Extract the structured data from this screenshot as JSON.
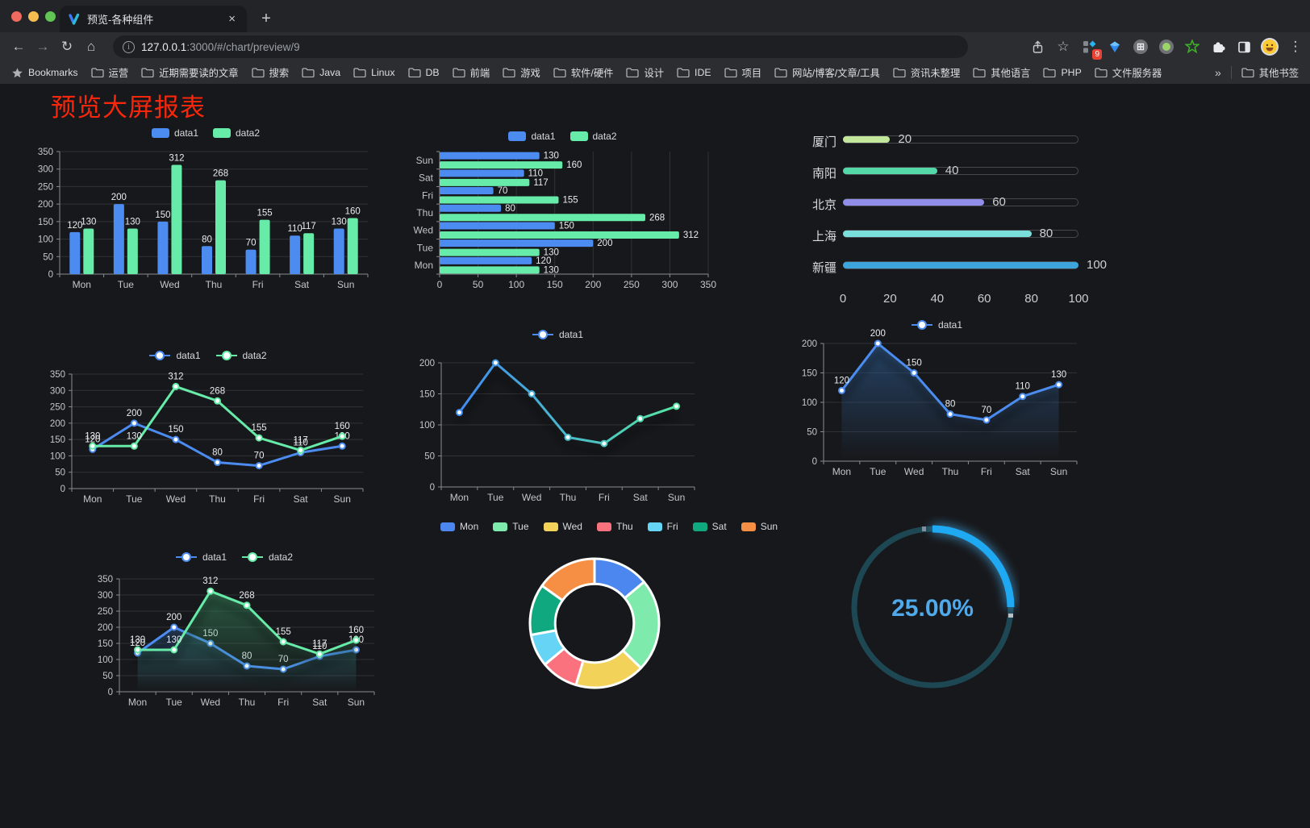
{
  "browser": {
    "traffic_lights": [
      "#EC6A5E",
      "#F5BE4F",
      "#61C454"
    ],
    "tab": {
      "title": "预览-各种组件",
      "close": "×"
    },
    "new_tab": "+",
    "nav": {
      "back": "←",
      "forward": "→",
      "reload": "↻",
      "home": "⌂"
    },
    "url": {
      "info": "i",
      "host": "127.0.0.1",
      "rest": ":3000/#/chart/preview/9"
    },
    "extension_badge": "9",
    "menu_dots": "⋮",
    "bookmarks_bar": {
      "star_label": "Bookmarks",
      "folders": [
        "运营",
        "近期需要读的文章",
        "搜索",
        "Java",
        "Linux",
        "DB",
        "前端",
        "游戏",
        "软件/硬件",
        "设计",
        "IDE",
        "项目",
        "网站/博客/文章/工具",
        "资讯未整理",
        "其他语言",
        "PHP",
        "文件服务器"
      ],
      "overflow": "»",
      "other": "其他书签"
    }
  },
  "page": {
    "title": "预览大屏报表",
    "title_color": "#F8270B",
    "background": "#17181B"
  },
  "chart_data": [
    {
      "type": "bar",
      "legend_position": "top",
      "value_labels": true,
      "grid": true,
      "categories": [
        "Mon",
        "Tue",
        "Wed",
        "Thu",
        "Fri",
        "Sat",
        "Sun"
      ],
      "series": [
        {
          "name": "data1",
          "color": "#4C8CF0",
          "values": [
            120,
            200,
            150,
            80,
            70,
            110,
            130
          ]
        },
        {
          "name": "data2",
          "color": "#66EBA8",
          "values": [
            130,
            130,
            312,
            268,
            155,
            117,
            160
          ]
        }
      ],
      "ylim": [
        0,
        350
      ],
      "ystep": 50
    },
    {
      "type": "bar",
      "orientation": "horizontal",
      "legend_position": "top",
      "value_labels": true,
      "grid": true,
      "categories": [
        "Mon",
        "Tue",
        "Wed",
        "Thu",
        "Fri",
        "Sat",
        "Sun"
      ],
      "series": [
        {
          "name": "data1",
          "color": "#4C8CF0",
          "values": [
            120,
            200,
            150,
            80,
            70,
            110,
            130
          ]
        },
        {
          "name": "data2",
          "color": "#66EBA8",
          "values": [
            130,
            130,
            312,
            268,
            155,
            117,
            160
          ]
        }
      ],
      "xlim": [
        0,
        350
      ],
      "xstep": 50
    },
    {
      "type": "progress",
      "max": 100,
      "ticks": [
        0,
        20,
        40,
        60,
        80,
        100
      ],
      "items": [
        {
          "label": "厦门",
          "value": 20,
          "color": "#C2E79B"
        },
        {
          "label": "南阳",
          "value": 40,
          "color": "#54D8A8"
        },
        {
          "label": "北京",
          "value": 60,
          "color": "#908EE8"
        },
        {
          "label": "上海",
          "value": 80,
          "color": "#7ADEDB"
        },
        {
          "label": "新疆",
          "value": 100,
          "color": "#3DA5DC"
        }
      ]
    },
    {
      "type": "line",
      "legend_position": "top",
      "value_labels": true,
      "grid": true,
      "categories": [
        "Mon",
        "Tue",
        "Wed",
        "Thu",
        "Fri",
        "Sat",
        "Sun"
      ],
      "series": [
        {
          "name": "data1",
          "color": "#4C8CF0",
          "values": [
            120,
            200,
            150,
            80,
            70,
            110,
            130
          ]
        },
        {
          "name": "data2",
          "color": "#66EBA8",
          "values": [
            130,
            130,
            312,
            268,
            155,
            117,
            160
          ]
        }
      ],
      "ylim": [
        0,
        350
      ],
      "ystep": 50
    },
    {
      "type": "line",
      "legend_position": "top",
      "value_labels": false,
      "grid": true,
      "shadow": true,
      "categories": [
        "Mon",
        "Tue",
        "Wed",
        "Thu",
        "Fri",
        "Sat",
        "Sun"
      ],
      "series": [
        {
          "name": "data1",
          "color": "#4C8CF0",
          "gradient": [
            "#3F8CF2",
            "#55E6A3"
          ],
          "values": [
            120,
            200,
            150,
            80,
            70,
            110,
            130
          ]
        }
      ],
      "ylim": [
        0,
        200
      ],
      "ystep": 50
    },
    {
      "type": "line",
      "legend_position": "top",
      "value_labels": true,
      "grid": true,
      "shadow": true,
      "categories": [
        "Mon",
        "Tue",
        "Wed",
        "Thu",
        "Fri",
        "Sat",
        "Sun"
      ],
      "series": [
        {
          "name": "data1",
          "color": "#4C8CF0",
          "area_color": "#2E5E94",
          "area_opacity": 0.6,
          "values": [
            120,
            200,
            150,
            80,
            70,
            110,
            130
          ]
        }
      ],
      "ylim": [
        0,
        200
      ],
      "ystep": 50
    },
    {
      "type": "line",
      "legend_position": "top",
      "value_labels": true,
      "grid": true,
      "shadow": true,
      "categories": [
        "Mon",
        "Tue",
        "Wed",
        "Thu",
        "Fri",
        "Sat",
        "Sun"
      ],
      "series": [
        {
          "name": "data1",
          "color": "#4C8CF0",
          "area_color": "#2E5E94",
          "area_opacity": 0.45,
          "values": [
            120,
            200,
            150,
            80,
            70,
            110,
            130
          ]
        },
        {
          "name": "data2",
          "color": "#66EBA8",
          "area_color": "#3C9A68",
          "area_opacity": 0.5,
          "values": [
            130,
            130,
            312,
            268,
            155,
            117,
            160
          ]
        }
      ],
      "ylim": [
        0,
        350
      ],
      "ystep": 50
    },
    {
      "type": "pie",
      "legend_position": "top",
      "inner_radius_ratio": 0.61,
      "slices": [
        {
          "label": "Mon",
          "value": 120,
          "color": "#4B87EE"
        },
        {
          "label": "Tue",
          "value": 200,
          "color": "#7EEBAC"
        },
        {
          "label": "Wed",
          "value": 150,
          "color": "#F2D258"
        },
        {
          "label": "Thu",
          "value": 80,
          "color": "#F9727E"
        },
        {
          "label": "Fri",
          "value": 70,
          "color": "#66D4F5"
        },
        {
          "label": "Sat",
          "value": 110,
          "color": "#10A97F"
        },
        {
          "label": "Sun",
          "value": 130,
          "color": "#F68F44"
        }
      ]
    },
    {
      "type": "gauge",
      "value": 25,
      "label": "25.00%",
      "color": "#1FA9F2",
      "track_color": "#1E4754",
      "text_color": "#4FA9EA"
    }
  ]
}
